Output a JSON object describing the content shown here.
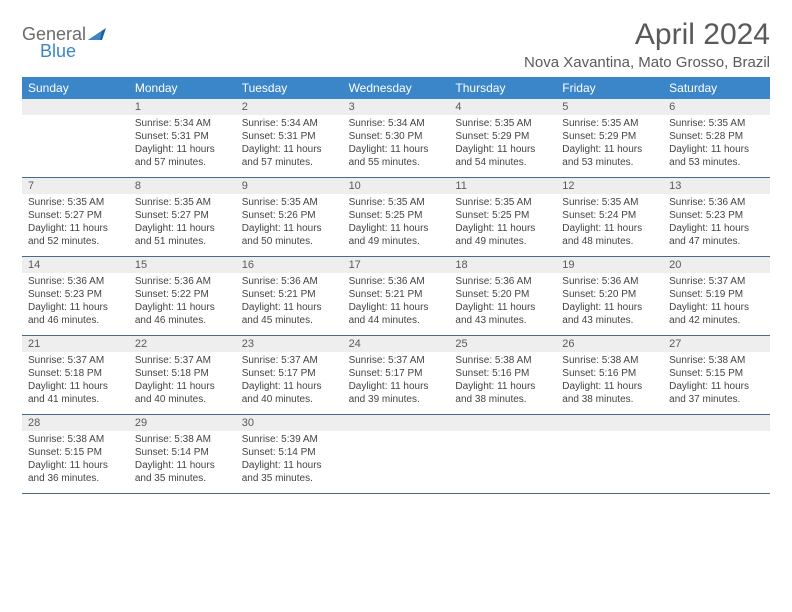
{
  "logo": {
    "word1": "General",
    "word2": "Blue"
  },
  "title": "April 2024",
  "subtitle": "Nova Xavantina, Mato Grosso, Brazil",
  "colors": {
    "header_bg": "#3a86c8",
    "header_text": "#ffffff",
    "gray_bar": "#eeeeee",
    "rule": "#4a6a88",
    "text": "#444444"
  },
  "day_headers": [
    "Sunday",
    "Monday",
    "Tuesday",
    "Wednesday",
    "Thursday",
    "Friday",
    "Saturday"
  ],
  "weeks": [
    [
      {
        "num": "",
        "sunrise": "",
        "sunset": "",
        "daylight": ""
      },
      {
        "num": "1",
        "sunrise": "Sunrise: 5:34 AM",
        "sunset": "Sunset: 5:31 PM",
        "daylight": "Daylight: 11 hours and 57 minutes."
      },
      {
        "num": "2",
        "sunrise": "Sunrise: 5:34 AM",
        "sunset": "Sunset: 5:31 PM",
        "daylight": "Daylight: 11 hours and 57 minutes."
      },
      {
        "num": "3",
        "sunrise": "Sunrise: 5:34 AM",
        "sunset": "Sunset: 5:30 PM",
        "daylight": "Daylight: 11 hours and 55 minutes."
      },
      {
        "num": "4",
        "sunrise": "Sunrise: 5:35 AM",
        "sunset": "Sunset: 5:29 PM",
        "daylight": "Daylight: 11 hours and 54 minutes."
      },
      {
        "num": "5",
        "sunrise": "Sunrise: 5:35 AM",
        "sunset": "Sunset: 5:29 PM",
        "daylight": "Daylight: 11 hours and 53 minutes."
      },
      {
        "num": "6",
        "sunrise": "Sunrise: 5:35 AM",
        "sunset": "Sunset: 5:28 PM",
        "daylight": "Daylight: 11 hours and 53 minutes."
      }
    ],
    [
      {
        "num": "7",
        "sunrise": "Sunrise: 5:35 AM",
        "sunset": "Sunset: 5:27 PM",
        "daylight": "Daylight: 11 hours and 52 minutes."
      },
      {
        "num": "8",
        "sunrise": "Sunrise: 5:35 AM",
        "sunset": "Sunset: 5:27 PM",
        "daylight": "Daylight: 11 hours and 51 minutes."
      },
      {
        "num": "9",
        "sunrise": "Sunrise: 5:35 AM",
        "sunset": "Sunset: 5:26 PM",
        "daylight": "Daylight: 11 hours and 50 minutes."
      },
      {
        "num": "10",
        "sunrise": "Sunrise: 5:35 AM",
        "sunset": "Sunset: 5:25 PM",
        "daylight": "Daylight: 11 hours and 49 minutes."
      },
      {
        "num": "11",
        "sunrise": "Sunrise: 5:35 AM",
        "sunset": "Sunset: 5:25 PM",
        "daylight": "Daylight: 11 hours and 49 minutes."
      },
      {
        "num": "12",
        "sunrise": "Sunrise: 5:35 AM",
        "sunset": "Sunset: 5:24 PM",
        "daylight": "Daylight: 11 hours and 48 minutes."
      },
      {
        "num": "13",
        "sunrise": "Sunrise: 5:36 AM",
        "sunset": "Sunset: 5:23 PM",
        "daylight": "Daylight: 11 hours and 47 minutes."
      }
    ],
    [
      {
        "num": "14",
        "sunrise": "Sunrise: 5:36 AM",
        "sunset": "Sunset: 5:23 PM",
        "daylight": "Daylight: 11 hours and 46 minutes."
      },
      {
        "num": "15",
        "sunrise": "Sunrise: 5:36 AM",
        "sunset": "Sunset: 5:22 PM",
        "daylight": "Daylight: 11 hours and 46 minutes."
      },
      {
        "num": "16",
        "sunrise": "Sunrise: 5:36 AM",
        "sunset": "Sunset: 5:21 PM",
        "daylight": "Daylight: 11 hours and 45 minutes."
      },
      {
        "num": "17",
        "sunrise": "Sunrise: 5:36 AM",
        "sunset": "Sunset: 5:21 PM",
        "daylight": "Daylight: 11 hours and 44 minutes."
      },
      {
        "num": "18",
        "sunrise": "Sunrise: 5:36 AM",
        "sunset": "Sunset: 5:20 PM",
        "daylight": "Daylight: 11 hours and 43 minutes."
      },
      {
        "num": "19",
        "sunrise": "Sunrise: 5:36 AM",
        "sunset": "Sunset: 5:20 PM",
        "daylight": "Daylight: 11 hours and 43 minutes."
      },
      {
        "num": "20",
        "sunrise": "Sunrise: 5:37 AM",
        "sunset": "Sunset: 5:19 PM",
        "daylight": "Daylight: 11 hours and 42 minutes."
      }
    ],
    [
      {
        "num": "21",
        "sunrise": "Sunrise: 5:37 AM",
        "sunset": "Sunset: 5:18 PM",
        "daylight": "Daylight: 11 hours and 41 minutes."
      },
      {
        "num": "22",
        "sunrise": "Sunrise: 5:37 AM",
        "sunset": "Sunset: 5:18 PM",
        "daylight": "Daylight: 11 hours and 40 minutes."
      },
      {
        "num": "23",
        "sunrise": "Sunrise: 5:37 AM",
        "sunset": "Sunset: 5:17 PM",
        "daylight": "Daylight: 11 hours and 40 minutes."
      },
      {
        "num": "24",
        "sunrise": "Sunrise: 5:37 AM",
        "sunset": "Sunset: 5:17 PM",
        "daylight": "Daylight: 11 hours and 39 minutes."
      },
      {
        "num": "25",
        "sunrise": "Sunrise: 5:38 AM",
        "sunset": "Sunset: 5:16 PM",
        "daylight": "Daylight: 11 hours and 38 minutes."
      },
      {
        "num": "26",
        "sunrise": "Sunrise: 5:38 AM",
        "sunset": "Sunset: 5:16 PM",
        "daylight": "Daylight: 11 hours and 38 minutes."
      },
      {
        "num": "27",
        "sunrise": "Sunrise: 5:38 AM",
        "sunset": "Sunset: 5:15 PM",
        "daylight": "Daylight: 11 hours and 37 minutes."
      }
    ],
    [
      {
        "num": "28",
        "sunrise": "Sunrise: 5:38 AM",
        "sunset": "Sunset: 5:15 PM",
        "daylight": "Daylight: 11 hours and 36 minutes."
      },
      {
        "num": "29",
        "sunrise": "Sunrise: 5:38 AM",
        "sunset": "Sunset: 5:14 PM",
        "daylight": "Daylight: 11 hours and 35 minutes."
      },
      {
        "num": "30",
        "sunrise": "Sunrise: 5:39 AM",
        "sunset": "Sunset: 5:14 PM",
        "daylight": "Daylight: 11 hours and 35 minutes."
      },
      {
        "num": "",
        "sunrise": "",
        "sunset": "",
        "daylight": ""
      },
      {
        "num": "",
        "sunrise": "",
        "sunset": "",
        "daylight": ""
      },
      {
        "num": "",
        "sunrise": "",
        "sunset": "",
        "daylight": ""
      },
      {
        "num": "",
        "sunrise": "",
        "sunset": "",
        "daylight": ""
      }
    ]
  ]
}
